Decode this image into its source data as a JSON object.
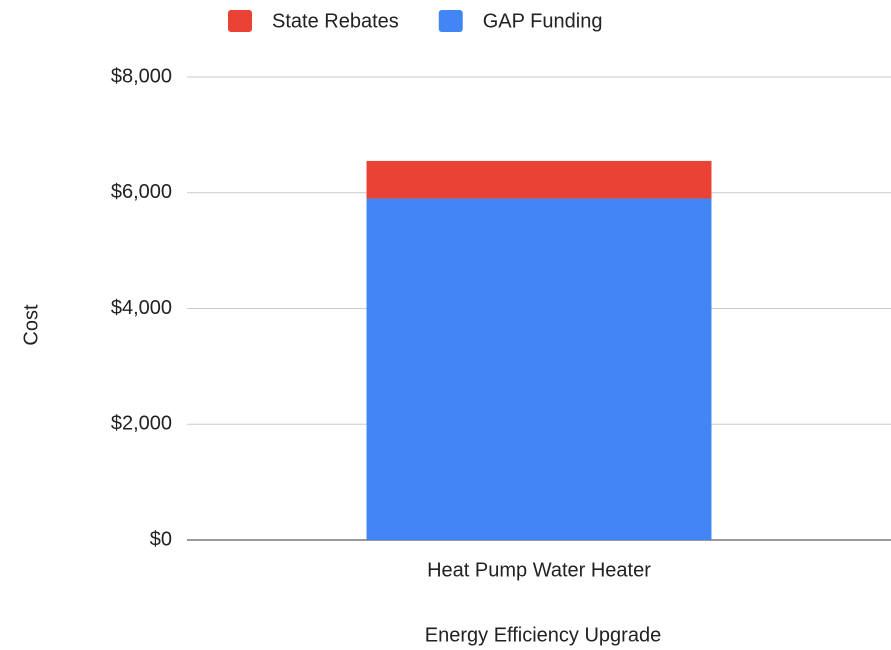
{
  "chart_data": {
    "type": "stacked_bar",
    "x_label": "Energy Efficiency Upgrade",
    "y_label": "Cost",
    "categories": [
      "Heat Pump Water Heater"
    ],
    "series": [
      {
        "name": "State Rebates",
        "color": "#ea4335",
        "values": [
          650
        ]
      },
      {
        "name": "GAP Funding",
        "color": "#4285f4",
        "values": [
          5900
        ]
      }
    ],
    "ylim": [
      0,
      8000
    ],
    "yticks": [
      {
        "value": 0,
        "label": "$0"
      },
      {
        "value": 2000,
        "label": "$2,000"
      },
      {
        "value": 4000,
        "label": "$4,000"
      },
      {
        "value": 6000,
        "label": "$6,000"
      },
      {
        "value": 8000,
        "label": "$8,000"
      }
    ],
    "grid": true,
    "legend": "top"
  }
}
